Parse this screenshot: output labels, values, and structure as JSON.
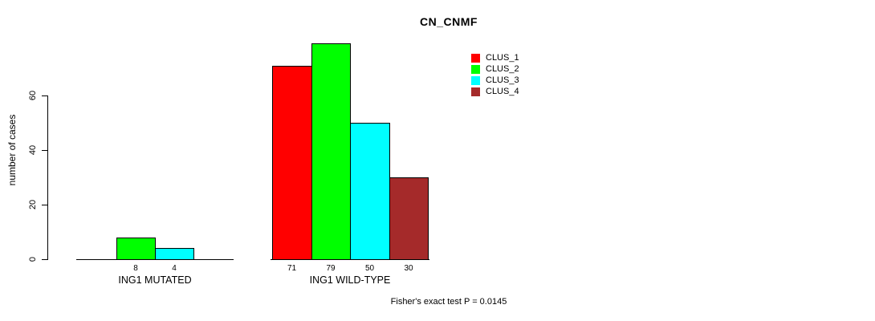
{
  "chart_data": {
    "type": "bar",
    "title": "CN_CNMF",
    "xlabel": "",
    "ylabel": "number of cases",
    "categories": [
      "ING1 MUTATED",
      "ING1 WILD-TYPE"
    ],
    "series": [
      {
        "name": "CLUS_1",
        "color": "#FF0000",
        "values": [
          0,
          71
        ]
      },
      {
        "name": "CLUS_2",
        "color": "#00FF00",
        "values": [
          8,
          79
        ]
      },
      {
        "name": "CLUS_3",
        "color": "#00FFFF",
        "values": [
          4,
          50
        ]
      },
      {
        "name": "CLUS_4",
        "color": "#A52A2A",
        "values": [
          0,
          30
        ]
      }
    ],
    "bar_value_labels": [
      [
        null,
        8,
        4,
        null
      ],
      [
        71,
        79,
        50,
        30
      ]
    ],
    "yticks": [
      0,
      20,
      40,
      60
    ],
    "ylim": [
      0,
      80
    ],
    "grid": false,
    "legend_position": "top-right",
    "annotation": "Fisher's exact test P = 0.0145"
  },
  "colors": {
    "background": "#FFFFFF",
    "axis": "#000000",
    "text": "#000000"
  }
}
